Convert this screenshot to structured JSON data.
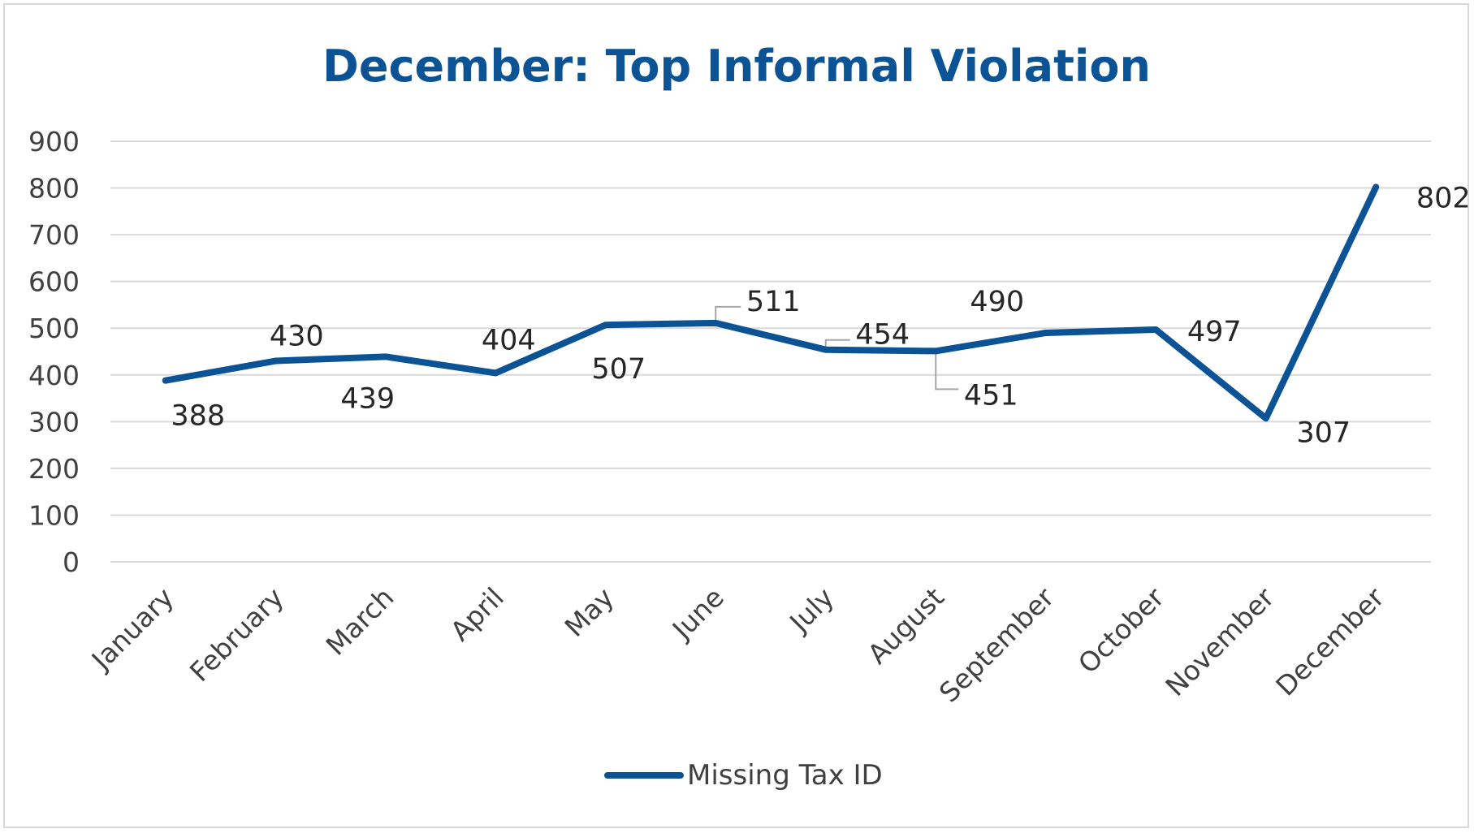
{
  "chart_data": {
    "type": "line",
    "title": "December: Top Informal Violation",
    "categories": [
      "January",
      "February",
      "March",
      "April",
      "May",
      "June",
      "July",
      "August",
      "September",
      "October",
      "November",
      "December"
    ],
    "series": [
      {
        "name": "Missing Tax ID",
        "values": [
          388,
          430,
          439,
          404,
          507,
          511,
          454,
          451,
          490,
          497,
          307,
          802
        ],
        "color": "#0b5395"
      }
    ],
    "y_ticks": [
      0,
      100,
      200,
      300,
      400,
      500,
      600,
      700,
      800,
      900
    ],
    "ylim": [
      0,
      900
    ],
    "grid": true,
    "legend_position": "bottom",
    "data_labels": true
  }
}
